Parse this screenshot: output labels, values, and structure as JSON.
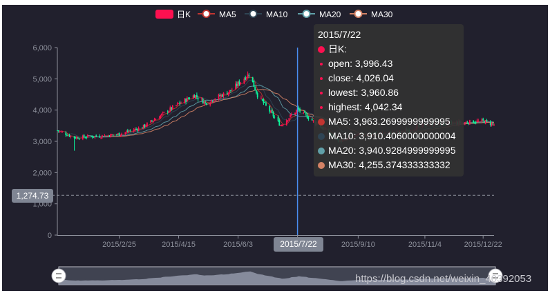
{
  "colors": {
    "background": "#21202d",
    "up": "#fd1050",
    "down": "#0cf49b",
    "ma5": "#c23531",
    "ma10": "#2f4554",
    "ma20": "#61a0a8",
    "ma30": "#d48265",
    "axis_pointer": "#4a8ef0"
  },
  "legend": [
    {
      "name": "日K",
      "color": "#fd1050",
      "icon": "round-rect"
    },
    {
      "name": "MA5",
      "color": "#c23531",
      "icon": "empty-circle-line"
    },
    {
      "name": "MA10",
      "color": "#2f4554",
      "icon": "empty-circle-line"
    },
    {
      "name": "MA20",
      "color": "#61a0a8",
      "icon": "empty-circle-line"
    },
    {
      "name": "MA30",
      "color": "#d48265",
      "icon": "empty-circle-line"
    }
  ],
  "chart_data": {
    "type": "candlestick",
    "y_ticks": [
      "0",
      "1,000",
      "2,000",
      "3,000",
      "4,000",
      "5,000",
      "6,000"
    ],
    "ylim": [
      0,
      6000
    ],
    "x_ticks": [
      "2015/2/25",
      "2015/4/15",
      "2015/6/3",
      "2015/7/22",
      "2015/9/10",
      "2015/11/4",
      "2015/12/22"
    ],
    "xlim": [
      "2015/1/5",
      "2015/12/31"
    ],
    "grid": false,
    "legend_position": "top-center",
    "key_points": [
      {
        "date": "2015/1/5",
        "close": 3350
      },
      {
        "date": "2015/1/19",
        "close": 3120
      },
      {
        "date": "2015/2/10",
        "close": 3170
      },
      {
        "date": "2015/2/25",
        "close": 3230
      },
      {
        "date": "2015/3/16",
        "close": 3450
      },
      {
        "date": "2015/4/15",
        "close": 4200
      },
      {
        "date": "2015/4/28",
        "close": 4480
      },
      {
        "date": "2015/5/7",
        "close": 4230
      },
      {
        "date": "2015/5/28",
        "close": 4620
      },
      {
        "date": "2015/6/12",
        "close": 5170
      },
      {
        "date": "2015/6/19",
        "close": 4480
      },
      {
        "date": "2015/7/8",
        "close": 3510
      },
      {
        "date": "2015/7/22",
        "close": 4026
      },
      {
        "date": "2015/8/26",
        "close": 3000
      },
      {
        "date": "2015/9/10",
        "close": 3200
      },
      {
        "date": "2015/10/15",
        "close": 3300
      },
      {
        "date": "2015/11/4",
        "close": 3520
      },
      {
        "date": "2015/12/22",
        "close": 3650
      },
      {
        "date": "2015/12/31",
        "close": 3540
      }
    ],
    "ma": {
      "MA5": 5,
      "MA10": 10,
      "MA20": 20,
      "MA30": 30
    },
    "axis_pointer": {
      "x_label": "2015/7/22",
      "y_label": "1,274.73",
      "y_value": 1274.73
    }
  },
  "tooltip": {
    "date": "2015/7/22",
    "series_name": "日K:",
    "ohlc": [
      {
        "key": "open",
        "text": "open: 3,996.43"
      },
      {
        "key": "close",
        "text": "close: 4,026.04"
      },
      {
        "key": "lowest",
        "text": "lowest: 3,960.86"
      },
      {
        "key": "highest",
        "text": "highest: 4,042.34"
      }
    ],
    "ma": [
      {
        "key": "MA5",
        "text": "MA5: 3,963.2699999999995",
        "color": "#c23531"
      },
      {
        "key": "MA10",
        "text": "MA10: 3,910.4060000000004",
        "color": "#2f4554"
      },
      {
        "key": "MA20",
        "text": "MA20: 3,940.9284999999995",
        "color": "#61a0a8"
      },
      {
        "key": "MA30",
        "text": "MA30: 4,255.374333333332",
        "color": "#d48265"
      }
    ]
  },
  "watermark": "https://blog.csdn.net/weixin_40392053"
}
